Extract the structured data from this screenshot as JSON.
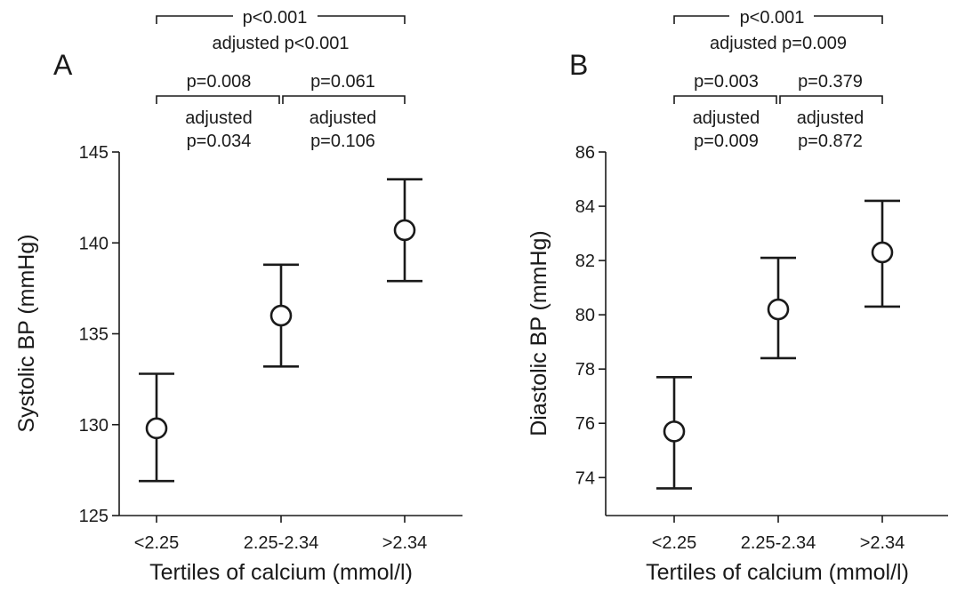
{
  "chart_data": [
    {
      "type": "scatter",
      "panel_label": "A",
      "xlabel": "Tertiles of calcium (mmol/l)",
      "ylabel": "Systolic BP (mmHg)",
      "categories": [
        "<2.25",
        "2.25-2.34",
        ">2.34"
      ],
      "ylim": [
        125,
        145
      ],
      "yticks": [
        125,
        130,
        135,
        140,
        145
      ],
      "series": [
        {
          "values": [
            129.8,
            136.0,
            140.7
          ],
          "error_low": [
            126.9,
            133.2,
            137.9
          ],
          "error_high": [
            132.8,
            138.8,
            143.5
          ]
        }
      ],
      "comparisons": [
        {
          "from": 0,
          "to": 2,
          "p": "p<0.001",
          "adjusted": "adjusted p<0.001"
        },
        {
          "from": 0,
          "to": 1,
          "p": "p=0.008",
          "adjusted_line1": "adjusted",
          "adjusted_line2": "p=0.034"
        },
        {
          "from": 1,
          "to": 2,
          "p": "p=0.061",
          "adjusted_line1": "adjusted",
          "adjusted_line2": "p=0.106"
        }
      ],
      "grid": false
    },
    {
      "type": "scatter",
      "panel_label": "B",
      "xlabel": "Tertiles of calcium (mmol/l)",
      "ylabel": "Diastolic BP (mmHg)",
      "categories": [
        "<2.25",
        "2.25-2.34",
        ">2.34"
      ],
      "ylim": [
        72.6,
        86
      ],
      "yticks": [
        74,
        76,
        78,
        80,
        82,
        84,
        86
      ],
      "series": [
        {
          "values": [
            75.7,
            80.2,
            82.3
          ],
          "error_low": [
            73.6,
            78.4,
            80.3
          ],
          "error_high": [
            77.7,
            82.1,
            84.2
          ]
        }
      ],
      "comparisons": [
        {
          "from": 0,
          "to": 2,
          "p": "p<0.001",
          "adjusted": "adjusted p=0.009"
        },
        {
          "from": 0,
          "to": 1,
          "p": "p=0.003",
          "adjusted_line1": "adjusted",
          "adjusted_line2": "p=0.009"
        },
        {
          "from": 1,
          "to": 2,
          "p": "p=0.379",
          "adjusted_line1": "adjusted",
          "adjusted_line2": "p=0.872"
        }
      ],
      "grid": false
    }
  ]
}
